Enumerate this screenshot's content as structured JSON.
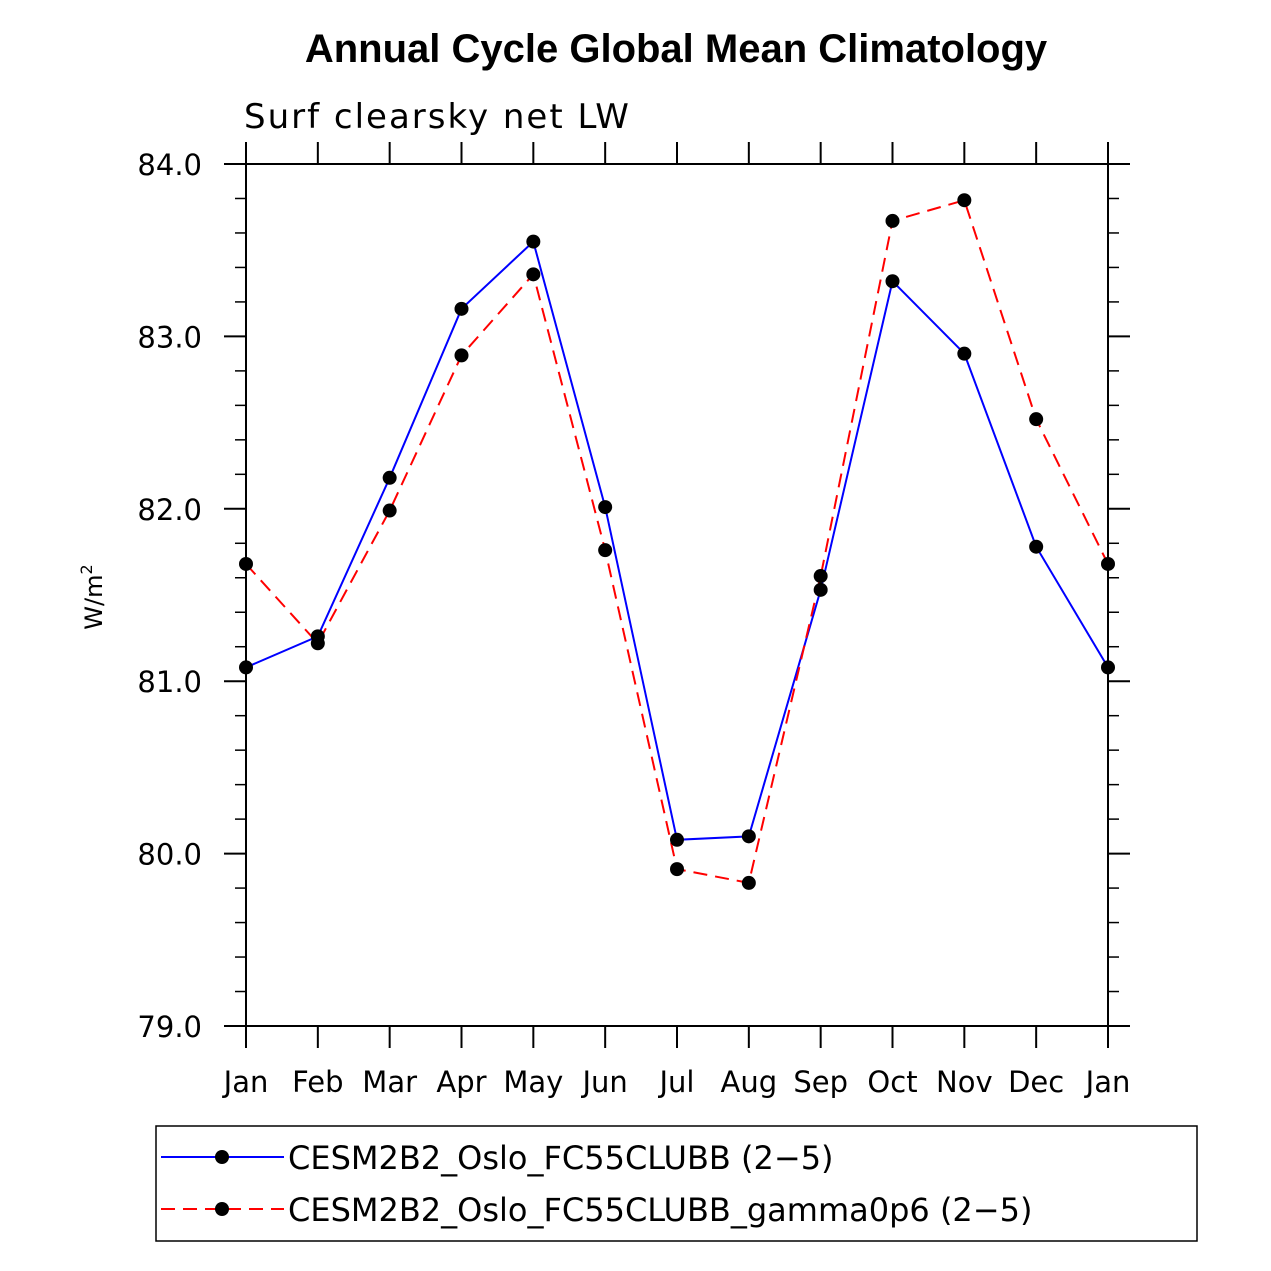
{
  "chart_data": {
    "type": "line",
    "title": "Annual Cycle Global Mean Climatology",
    "subtitle": "Surf clearsky net LW",
    "ylabel": "W/m",
    "ylabel_superscript": "2",
    "xlabel": "",
    "categories": [
      "Jan",
      "Feb",
      "Mar",
      "Apr",
      "May",
      "Jun",
      "Jul",
      "Aug",
      "Sep",
      "Oct",
      "Nov",
      "Dec",
      "Jan"
    ],
    "ylim": [
      79.0,
      84.0
    ],
    "yticks": [
      "79.0",
      "80.0",
      "81.0",
      "82.0",
      "83.0",
      "84.0"
    ],
    "grid": false,
    "legend_position": "bottom",
    "series": [
      {
        "name": "CESM2B2_Oslo_FC55CLUBB (2−5)",
        "color": "#0000ff",
        "dash": "solid",
        "values": [
          81.08,
          81.26,
          82.18,
          83.16,
          83.55,
          82.01,
          80.08,
          80.1,
          81.53,
          83.32,
          82.9,
          81.78,
          81.08
        ]
      },
      {
        "name": "CESM2B2_Oslo_FC55CLUBB_gamma0p6 (2−5)",
        "color": "#ff0000",
        "dash": "dashed",
        "values": [
          81.68,
          81.22,
          81.99,
          82.89,
          83.36,
          81.76,
          79.91,
          79.83,
          81.61,
          83.67,
          83.79,
          82.52,
          81.68
        ]
      }
    ]
  }
}
